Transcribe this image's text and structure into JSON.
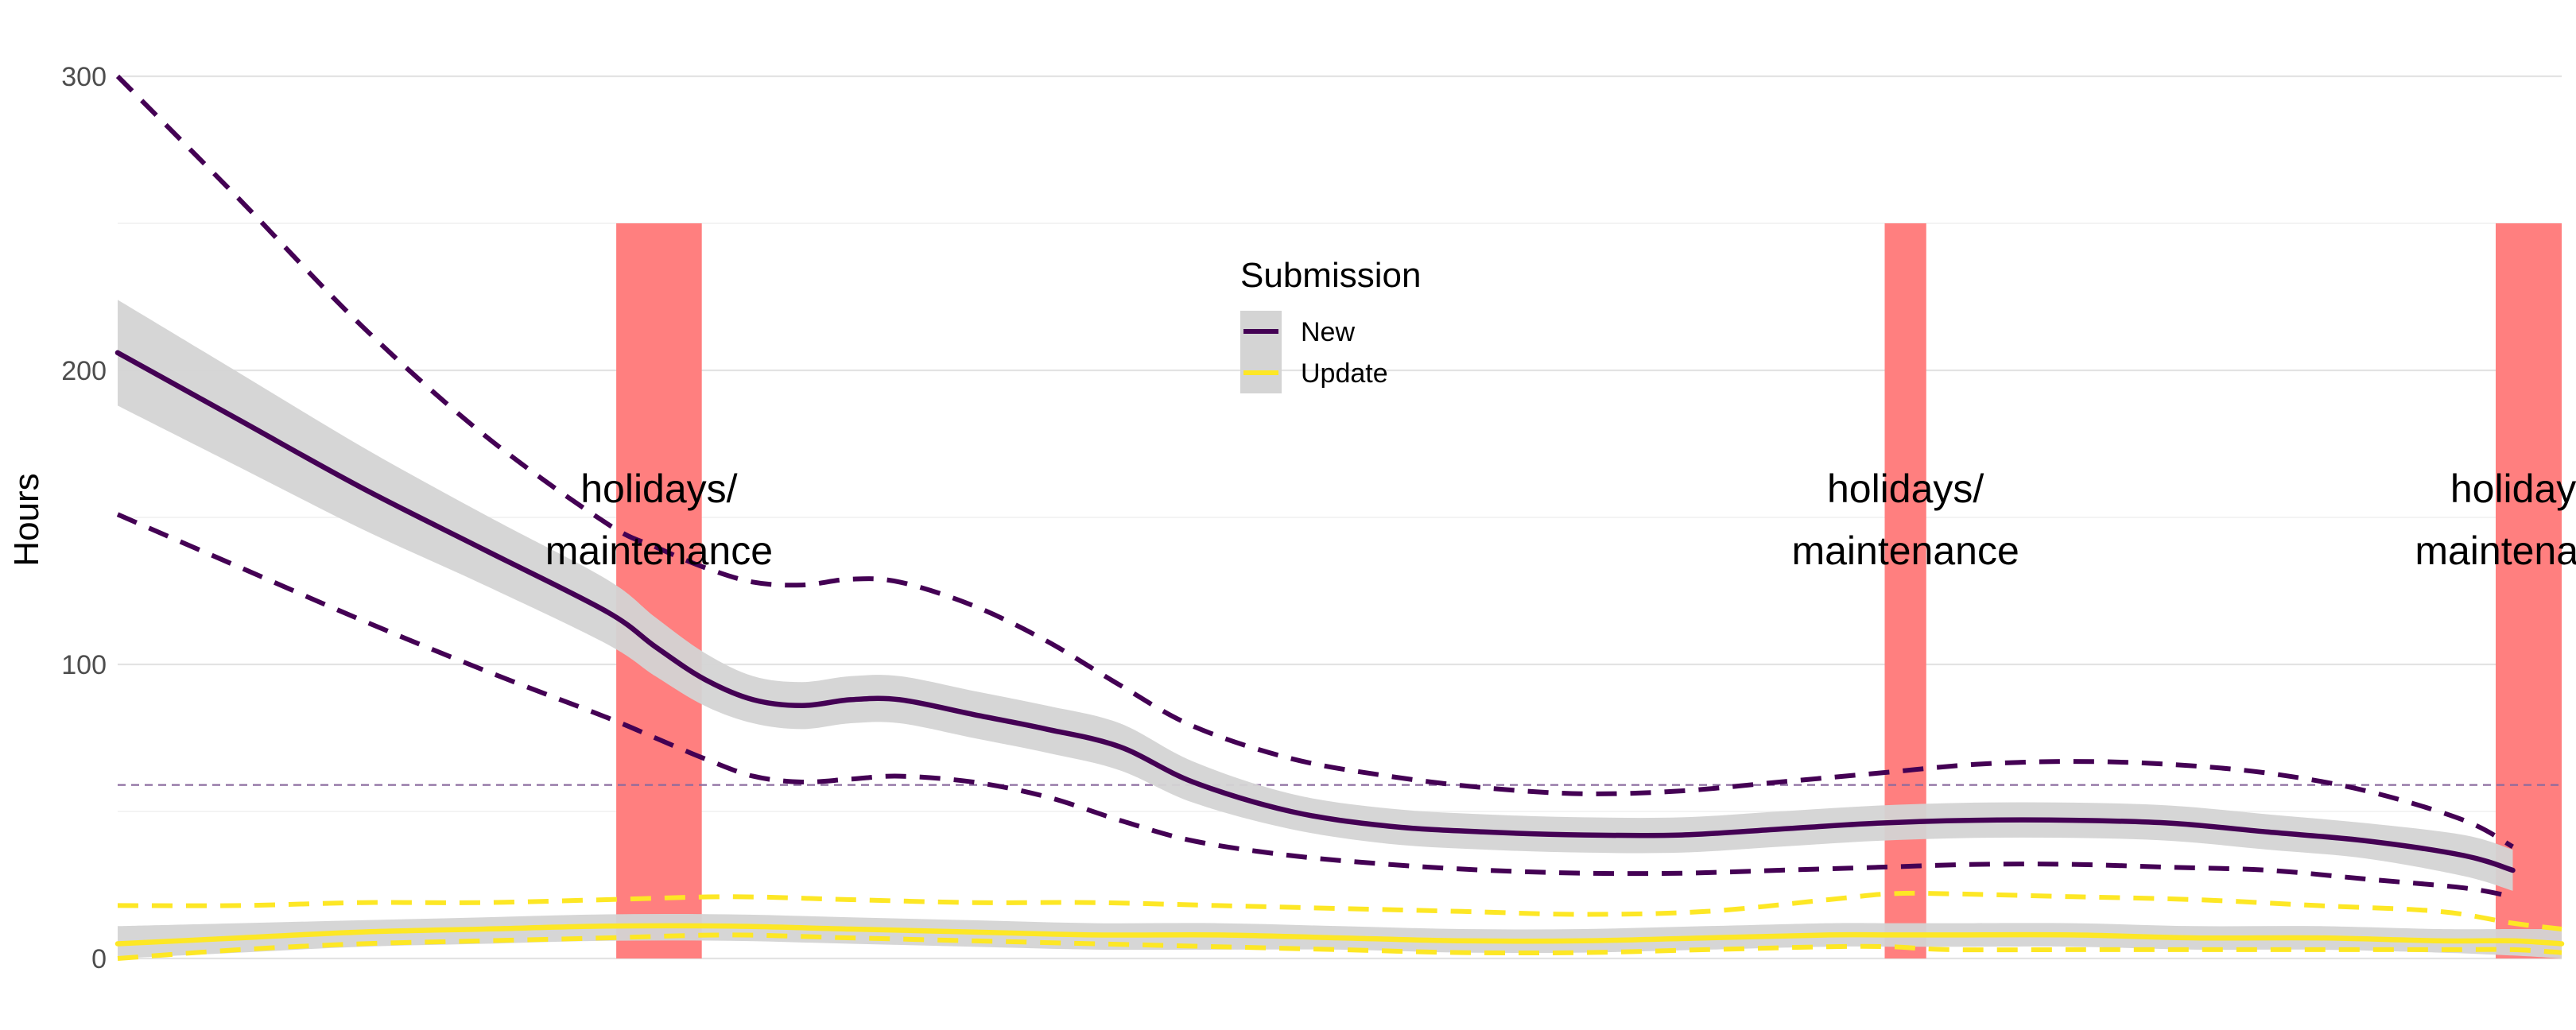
{
  "chart_data": {
    "type": "line",
    "title": "",
    "xlabel": "",
    "ylabel": "Hours",
    "ylim": [
      0,
      300
    ],
    "xlim": [
      0,
      100
    ],
    "yticks": [
      0,
      100,
      200,
      300
    ],
    "grid": true,
    "legend": {
      "title": "Submission",
      "position": "top-center",
      "entries": [
        "New",
        "Update"
      ]
    },
    "reference_line": {
      "y": 59,
      "color": "#8a6a9e",
      "style": "dashed"
    },
    "annotation_text": [
      "holidays/",
      "maintenance"
    ],
    "annotation_bands": [
      {
        "x0": 20.4,
        "x1": 23.9,
        "ymin": 0,
        "ymax": 250,
        "label": [
          "holidays/",
          "maintenance"
        ]
      },
      {
        "x0": 72.3,
        "x1": 74.0,
        "ymin": 0,
        "ymax": 250,
        "label": [
          "holidays/",
          "maintenance"
        ]
      },
      {
        "x0": 97.3,
        "x1": 100,
        "ymin": 0,
        "ymax": 250,
        "label": [
          "holidays/",
          "maintenance"
        ]
      }
    ],
    "colors": {
      "New": "#440154",
      "Update": "#fde725",
      "band": "#ff7f7f",
      "ribbon": "#d4d4d4"
    },
    "series": [
      {
        "name": "New",
        "color": "#440154",
        "x": [
          0,
          5,
          10,
          15,
          20,
          22,
          24,
          26,
          28,
          30,
          32,
          35,
          38,
          41,
          44,
          48,
          52,
          56,
          60,
          64,
          68,
          72,
          76,
          80,
          84,
          88,
          92,
          96,
          98
        ],
        "smooth": [
          206,
          183,
          160,
          139,
          118,
          106,
          95,
          88,
          86,
          88,
          88,
          83,
          78,
          72,
          60,
          50,
          45,
          43,
          42,
          42,
          44,
          46,
          47,
          47,
          46,
          43,
          40,
          35,
          30
        ],
        "ribbon_lower": [
          188,
          167,
          146,
          127,
          107,
          96,
          86,
          80,
          78,
          80,
          80,
          75,
          70,
          64,
          53,
          44,
          39,
          37,
          36,
          36,
          38,
          40,
          41,
          41,
          40,
          37,
          34,
          28,
          23
        ],
        "ribbon_upper": [
          224,
          199,
          174,
          151,
          129,
          116,
          104,
          96,
          94,
          96,
          96,
          91,
          86,
          80,
          67,
          56,
          51,
          49,
          48,
          48,
          50,
          52,
          53,
          53,
          52,
          49,
          46,
          42,
          37
        ],
        "upper": [
          300,
          258,
          215,
          178,
          148,
          140,
          133,
          128,
          127,
          129,
          128,
          120,
          108,
          93,
          79,
          68,
          62,
          58,
          56,
          57,
          60,
          63,
          66,
          67,
          66,
          63,
          57,
          47,
          38
        ],
        "lower": [
          151,
          133,
          115,
          98,
          82,
          75,
          68,
          62,
          60,
          61,
          62,
          60,
          55,
          47,
          40,
          35,
          32,
          30,
          29,
          29,
          30,
          31,
          32,
          32,
          31,
          30,
          27,
          24,
          21
        ]
      },
      {
        "name": "Update",
        "color": "#fde725",
        "x": [
          0,
          5,
          10,
          15,
          20,
          25,
          30,
          35,
          40,
          45,
          50,
          55,
          60,
          65,
          70,
          72.5,
          75,
          80,
          85,
          90,
          95,
          98,
          100
        ],
        "smooth": [
          5,
          7,
          9,
          10,
          11,
          11,
          10,
          9,
          8,
          8,
          7,
          6,
          6,
          7,
          8,
          8,
          8,
          8,
          7,
          7,
          6,
          6,
          5
        ],
        "ribbon_lower": [
          0,
          2,
          4,
          5,
          6,
          6,
          5,
          4,
          3,
          3,
          3,
          2,
          2,
          3,
          4,
          4,
          4,
          4,
          3,
          3,
          2,
          1,
          0
        ],
        "ribbon_upper": [
          11,
          12,
          13,
          14,
          15,
          15,
          14,
          13,
          12,
          12,
          11,
          10,
          10,
          11,
          12,
          12,
          12,
          12,
          11,
          11,
          10,
          10,
          10
        ],
        "upper": [
          18,
          18,
          19,
          19,
          20,
          21,
          20,
          19,
          19,
          18,
          17,
          16,
          15,
          16,
          20,
          22,
          22,
          21,
          20,
          18,
          16,
          12,
          10
        ],
        "lower": [
          0,
          3,
          5,
          6,
          7,
          8,
          7,
          6,
          5,
          4,
          3,
          2,
          2,
          3,
          4,
          4,
          3,
          3,
          3,
          3,
          3,
          3,
          2
        ]
      }
    ]
  }
}
